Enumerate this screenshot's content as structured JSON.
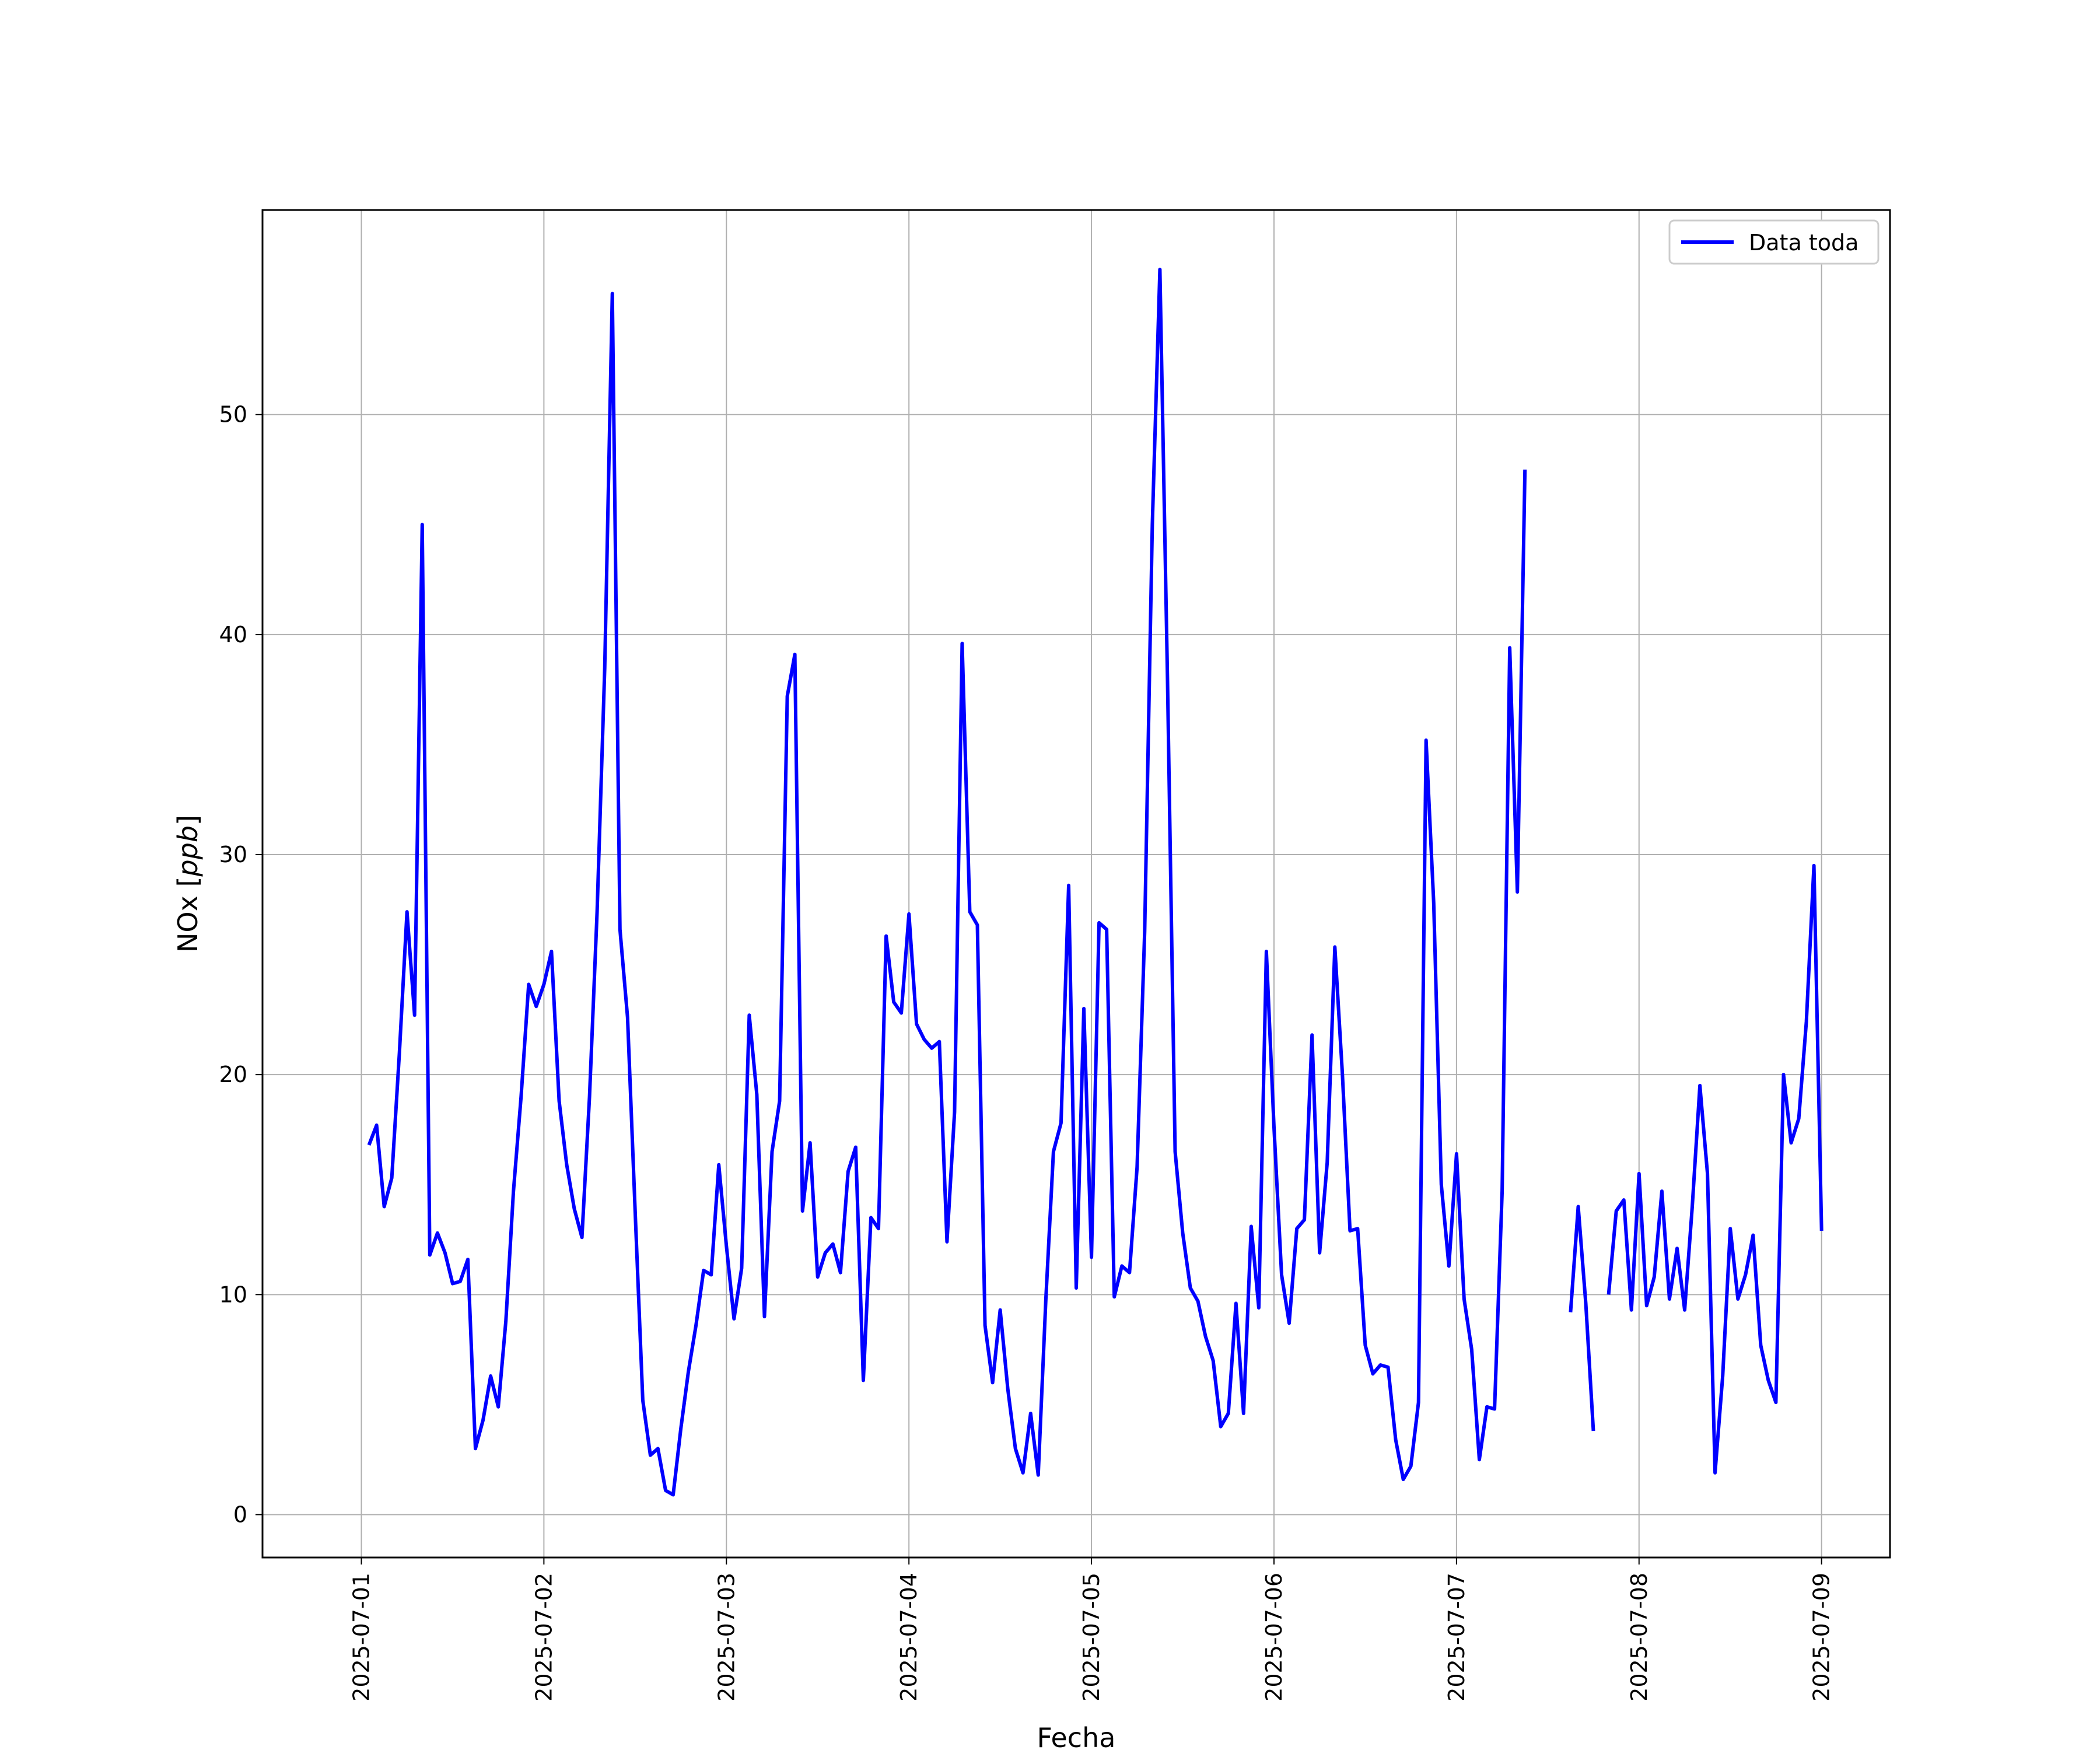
{
  "chart_data": {
    "type": "line",
    "xlabel": "Fecha",
    "ylabel_text": "NOx",
    "ylabel_unit": "ppb",
    "x_ticks": [
      "2025-07-01",
      "2025-07-02",
      "2025-07-03",
      "2025-07-04",
      "2025-07-05",
      "2025-07-06",
      "2025-07-07",
      "2025-07-08",
      "2025-07-09"
    ],
    "y_ticks": [
      0,
      10,
      20,
      30,
      40,
      50
    ],
    "xlim": [
      "2025-06-30T11:00",
      "2025-07-09T09:00"
    ],
    "ylim": [
      -1.95,
      59.3
    ],
    "grid": true,
    "legend_position": "top-right",
    "series": [
      {
        "name": "Data toda",
        "color": "#0000ff",
        "points": [
          [
            "2025-07-01T01:00",
            16.8
          ],
          [
            "2025-07-01T02:00",
            17.7
          ],
          [
            "2025-07-01T03:00",
            14.0
          ],
          [
            "2025-07-01T04:00",
            15.3
          ],
          [
            "2025-07-01T05:00",
            21.0
          ],
          [
            "2025-07-01T06:00",
            27.4
          ],
          [
            "2025-07-01T07:00",
            22.7
          ],
          [
            "2025-07-01T08:00",
            45.0
          ],
          [
            "2025-07-01T09:00",
            11.8
          ],
          [
            "2025-07-01T10:00",
            12.8
          ],
          [
            "2025-07-01T11:00",
            11.9
          ],
          [
            "2025-07-01T12:00",
            10.5
          ],
          [
            "2025-07-01T13:00",
            10.6
          ],
          [
            "2025-07-01T14:00",
            11.6
          ],
          [
            "2025-07-01T15:00",
            3.0
          ],
          [
            "2025-07-01T16:00",
            4.3
          ],
          [
            "2025-07-01T17:00",
            6.3
          ],
          [
            "2025-07-01T18:00",
            4.9
          ],
          [
            "2025-07-01T19:00",
            8.8
          ],
          [
            "2025-07-01T20:00",
            14.7
          ],
          [
            "2025-07-01T21:00",
            19.0
          ],
          [
            "2025-07-01T22:00",
            24.1
          ],
          [
            "2025-07-01T23:00",
            23.1
          ],
          [
            "2025-07-02T00:00",
            24.1
          ],
          [
            "2025-07-02T01:00",
            25.6
          ],
          [
            "2025-07-02T02:00",
            18.8
          ],
          [
            "2025-07-02T03:00",
            15.9
          ],
          [
            "2025-07-02T04:00",
            13.9
          ],
          [
            "2025-07-02T05:00",
            12.6
          ],
          [
            "2025-07-02T06:00",
            19.0
          ],
          [
            "2025-07-02T07:00",
            27.4
          ],
          [
            "2025-07-02T08:00",
            38.5
          ],
          [
            "2025-07-02T09:00",
            55.5
          ],
          [
            "2025-07-02T10:00",
            26.6
          ],
          [
            "2025-07-02T11:00",
            22.6
          ],
          [
            "2025-07-02T12:00",
            13.8
          ],
          [
            "2025-07-02T13:00",
            5.2
          ],
          [
            "2025-07-02T14:00",
            2.7
          ],
          [
            "2025-07-02T15:00",
            3.0
          ],
          [
            "2025-07-02T16:00",
            1.1
          ],
          [
            "2025-07-02T17:00",
            0.9
          ],
          [
            "2025-07-02T18:00",
            3.9
          ],
          [
            "2025-07-02T19:00",
            6.5
          ],
          [
            "2025-07-02T20:00",
            8.6
          ],
          [
            "2025-07-02T21:00",
            11.1
          ],
          [
            "2025-07-02T22:00",
            10.9
          ],
          [
            "2025-07-02T23:00",
            15.9
          ],
          [
            "2025-07-03T00:00",
            12.2
          ],
          [
            "2025-07-03T01:00",
            8.9
          ],
          [
            "2025-07-03T02:00",
            11.2
          ],
          [
            "2025-07-03T03:00",
            22.7
          ],
          [
            "2025-07-03T04:00",
            19.1
          ],
          [
            "2025-07-03T05:00",
            9.0
          ],
          [
            "2025-07-03T06:00",
            16.5
          ],
          [
            "2025-07-03T07:00",
            18.8
          ],
          [
            "2025-07-03T08:00",
            37.2
          ],
          [
            "2025-07-03T09:00",
            39.1
          ],
          [
            "2025-07-03T10:00",
            13.8
          ],
          [
            "2025-07-03T11:00",
            16.9
          ],
          [
            "2025-07-03T12:00",
            10.8
          ],
          [
            "2025-07-03T13:00",
            11.9
          ],
          [
            "2025-07-03T14:00",
            12.3
          ],
          [
            "2025-07-03T15:00",
            11.0
          ],
          [
            "2025-07-03T16:00",
            15.6
          ],
          [
            "2025-07-03T17:00",
            16.7
          ],
          [
            "2025-07-03T18:00",
            6.1
          ],
          [
            "2025-07-03T19:00",
            13.5
          ],
          [
            "2025-07-03T20:00",
            13.0
          ],
          [
            "2025-07-03T21:00",
            26.3
          ],
          [
            "2025-07-03T22:00",
            23.3
          ],
          [
            "2025-07-03T23:00",
            22.8
          ],
          [
            "2025-07-04T00:00",
            27.3
          ],
          [
            "2025-07-04T01:00",
            22.3
          ],
          [
            "2025-07-04T02:00",
            21.6
          ],
          [
            "2025-07-04T03:00",
            21.2
          ],
          [
            "2025-07-04T04:00",
            21.5
          ],
          [
            "2025-07-04T05:00",
            12.4
          ],
          [
            "2025-07-04T06:00",
            18.3
          ],
          [
            "2025-07-04T07:00",
            39.6
          ],
          [
            "2025-07-04T08:00",
            27.4
          ],
          [
            "2025-07-04T09:00",
            26.8
          ],
          [
            "2025-07-04T10:00",
            8.6
          ],
          [
            "2025-07-04T11:00",
            6.0
          ],
          [
            "2025-07-04T12:00",
            9.3
          ],
          [
            "2025-07-04T13:00",
            5.7
          ],
          [
            "2025-07-04T14:00",
            3.0
          ],
          [
            "2025-07-04T15:00",
            1.9
          ],
          [
            "2025-07-04T16:00",
            4.6
          ],
          [
            "2025-07-04T17:00",
            1.8
          ],
          [
            "2025-07-04T18:00",
            9.8
          ],
          [
            "2025-07-04T19:00",
            16.5
          ],
          [
            "2025-07-04T20:00",
            17.8
          ],
          [
            "2025-07-04T21:00",
            28.6
          ],
          [
            "2025-07-04T22:00",
            10.3
          ],
          [
            "2025-07-04T23:00",
            23.0
          ],
          [
            "2025-07-05T00:00",
            11.7
          ],
          [
            "2025-07-05T01:00",
            26.9
          ],
          [
            "2025-07-05T02:00",
            26.6
          ],
          [
            "2025-07-05T03:00",
            9.9
          ],
          [
            "2025-07-05T04:00",
            11.3
          ],
          [
            "2025-07-05T05:00",
            11.0
          ],
          [
            "2025-07-05T06:00",
            15.8
          ],
          [
            "2025-07-05T07:00",
            26.5
          ],
          [
            "2025-07-05T08:00",
            45.0
          ],
          [
            "2025-07-05T09:00",
            56.6
          ],
          [
            "2025-07-05T10:00",
            38.0
          ],
          [
            "2025-07-05T11:00",
            16.5
          ],
          [
            "2025-07-05T12:00",
            12.8
          ],
          [
            "2025-07-05T13:00",
            10.3
          ],
          [
            "2025-07-05T14:00",
            9.7
          ],
          [
            "2025-07-05T15:00",
            8.1
          ],
          [
            "2025-07-05T16:00",
            7.0
          ],
          [
            "2025-07-05T17:00",
            4.0
          ],
          [
            "2025-07-05T18:00",
            4.6
          ],
          [
            "2025-07-05T19:00",
            9.6
          ],
          [
            "2025-07-05T20:00",
            4.6
          ],
          [
            "2025-07-05T21:00",
            13.1
          ],
          [
            "2025-07-05T22:00",
            9.4
          ],
          [
            "2025-07-05T23:00",
            25.6
          ],
          [
            "2025-07-06T00:00",
            17.6
          ],
          [
            "2025-07-06T01:00",
            10.9
          ],
          [
            "2025-07-06T02:00",
            8.7
          ],
          [
            "2025-07-06T03:00",
            13.0
          ],
          [
            "2025-07-06T04:00",
            13.4
          ],
          [
            "2025-07-06T05:00",
            21.8
          ],
          [
            "2025-07-06T06:00",
            11.9
          ],
          [
            "2025-07-06T07:00",
            16.0
          ],
          [
            "2025-07-06T08:00",
            25.8
          ],
          [
            "2025-07-06T09:00",
            20.0
          ],
          [
            "2025-07-06T10:00",
            12.9
          ],
          [
            "2025-07-06T11:00",
            13.0
          ],
          [
            "2025-07-06T12:00",
            7.7
          ],
          [
            "2025-07-06T13:00",
            6.4
          ],
          [
            "2025-07-06T14:00",
            6.8
          ],
          [
            "2025-07-06T15:00",
            6.7
          ],
          [
            "2025-07-06T16:00",
            3.4
          ],
          [
            "2025-07-06T17:00",
            1.6
          ],
          [
            "2025-07-06T18:00",
            2.2
          ],
          [
            "2025-07-06T19:00",
            5.1
          ],
          [
            "2025-07-06T20:00",
            35.2
          ],
          [
            "2025-07-06T21:00",
            27.8
          ],
          [
            "2025-07-06T22:00",
            15.0
          ],
          [
            "2025-07-06T23:00",
            11.3
          ],
          [
            "2025-07-07T00:00",
            16.4
          ],
          [
            "2025-07-07T01:00",
            9.8
          ],
          [
            "2025-07-07T02:00",
            7.5
          ],
          [
            "2025-07-07T03:00",
            2.5
          ],
          [
            "2025-07-07T04:00",
            4.9
          ],
          [
            "2025-07-07T05:00",
            4.8
          ],
          [
            "2025-07-07T06:00",
            14.7
          ],
          [
            "2025-07-07T07:00",
            39.4
          ],
          [
            "2025-07-07T08:00",
            28.3
          ],
          [
            "2025-07-07T09:00",
            47.5
          ],
          null,
          [
            "2025-07-07T15:00",
            9.2
          ],
          [
            "2025-07-07T16:00",
            14.0
          ],
          [
            "2025-07-07T17:00",
            9.6
          ],
          [
            "2025-07-07T18:00",
            3.8
          ],
          null,
          [
            "2025-07-07T20:00",
            10.0
          ],
          [
            "2025-07-07T21:00",
            13.8
          ],
          [
            "2025-07-07T22:00",
            14.3
          ],
          [
            "2025-07-07T23:00",
            9.3
          ],
          [
            "2025-07-08T00:00",
            15.5
          ],
          [
            "2025-07-08T01:00",
            9.5
          ],
          [
            "2025-07-08T02:00",
            10.8
          ],
          [
            "2025-07-08T03:00",
            14.7
          ],
          [
            "2025-07-08T04:00",
            9.8
          ],
          [
            "2025-07-08T05:00",
            12.1
          ],
          [
            "2025-07-08T06:00",
            9.3
          ],
          [
            "2025-07-08T07:00",
            14.0
          ],
          [
            "2025-07-08T08:00",
            19.5
          ],
          [
            "2025-07-08T09:00",
            15.5
          ],
          [
            "2025-07-08T10:00",
            1.9
          ],
          [
            "2025-07-08T11:00",
            6.3
          ],
          [
            "2025-07-08T12:00",
            13.0
          ],
          [
            "2025-07-08T13:00",
            9.8
          ],
          [
            "2025-07-08T14:00",
            10.9
          ],
          [
            "2025-07-08T15:00",
            12.7
          ],
          [
            "2025-07-08T16:00",
            7.7
          ],
          [
            "2025-07-08T17:00",
            6.1
          ],
          [
            "2025-07-08T18:00",
            5.1
          ],
          [
            "2025-07-08T19:00",
            20.0
          ],
          [
            "2025-07-08T20:00",
            16.9
          ],
          [
            "2025-07-08T21:00",
            18.0
          ],
          [
            "2025-07-08T22:00",
            22.4
          ],
          [
            "2025-07-08T23:00",
            29.5
          ],
          [
            "2025-07-09T00:00",
            12.9
          ]
        ]
      }
    ]
  }
}
